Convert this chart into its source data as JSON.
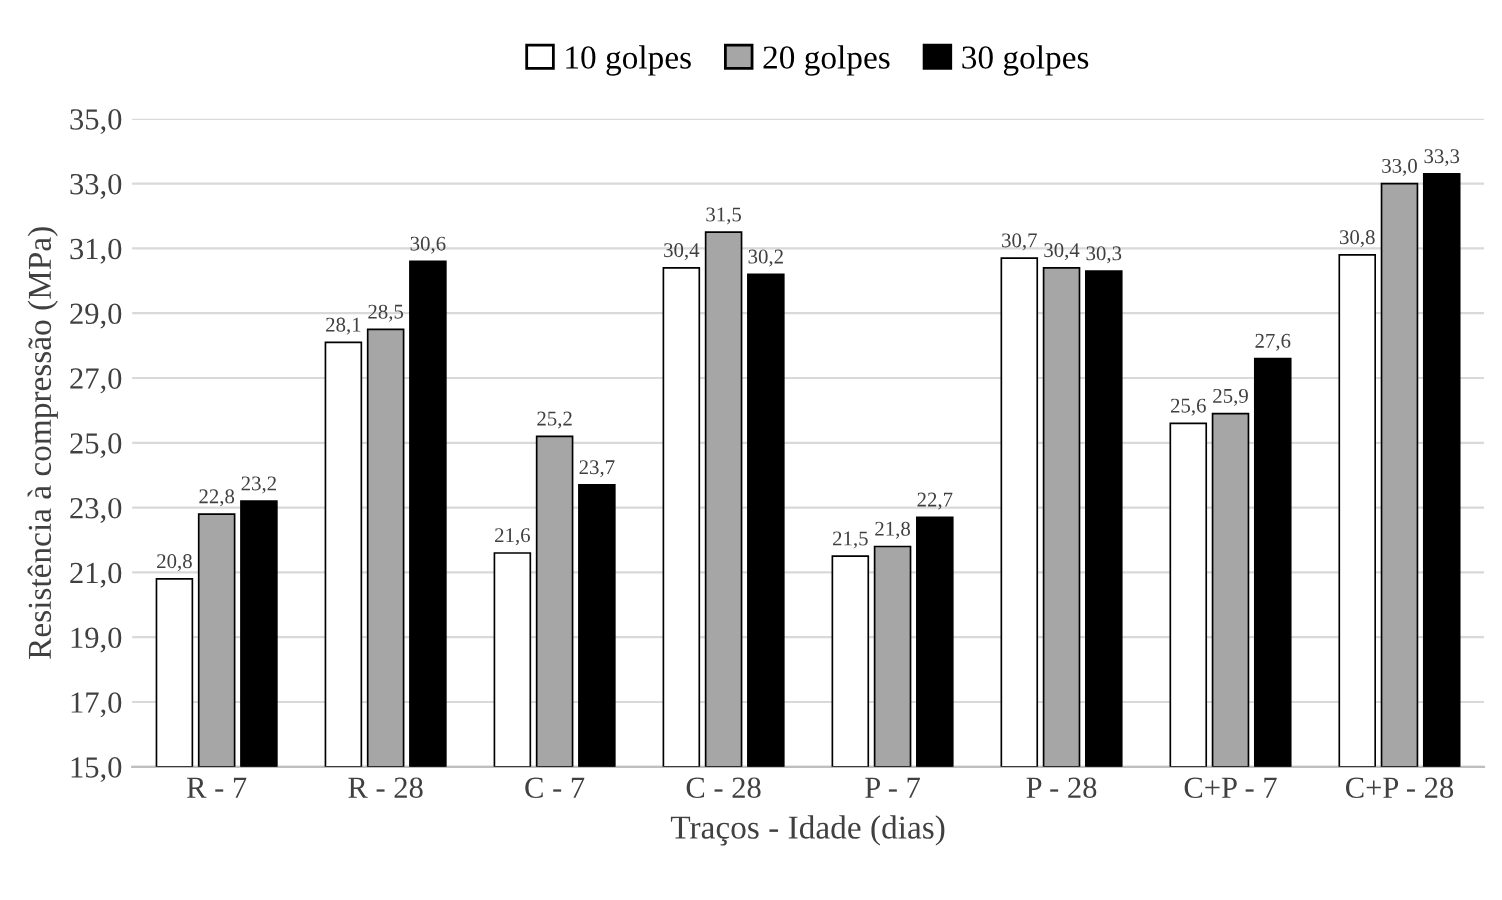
{
  "chart_data": {
    "type": "bar",
    "xlabel": "Traços - Idade (dias)",
    "ylabel": "Resistência à compressão (MPa)",
    "categories": [
      "R - 7",
      "R - 28",
      "C - 7",
      "C - 28",
      "P - 7",
      "P - 28",
      "C+P - 7",
      "C+P - 28"
    ],
    "series": [
      {
        "name": "10 golpes",
        "color": "#ffffff",
        "values": [
          20.8,
          28.1,
          21.6,
          30.4,
          21.5,
          30.7,
          25.6,
          30.8
        ],
        "value_labels": [
          "20,8",
          "28,1",
          "21,6",
          "30,4",
          "21,5",
          "30,7",
          "25,6",
          "30,8"
        ]
      },
      {
        "name": "20 golpes",
        "color": "#a6a6a6",
        "values": [
          22.8,
          28.5,
          25.2,
          31.5,
          21.8,
          30.4,
          25.9,
          33.0
        ],
        "value_labels": [
          "22,8",
          "28,5",
          "25,2",
          "31,5",
          "21,8",
          "30,4",
          "25,9",
          "33,0"
        ]
      },
      {
        "name": "30 golpes",
        "color": "#000000",
        "values": [
          23.2,
          30.6,
          23.7,
          30.2,
          22.7,
          30.3,
          27.6,
          33.3
        ],
        "value_labels": [
          "23,2",
          "30,6",
          "23,7",
          "30,2",
          "22,7",
          "30,3",
          "27,6",
          "33,3"
        ]
      }
    ],
    "ylim": [
      15,
      35
    ],
    "yticks": [
      {
        "value": 15,
        "label": "15,0"
      },
      {
        "value": 17,
        "label": "17,0"
      },
      {
        "value": 19,
        "label": "19,0"
      },
      {
        "value": 21,
        "label": "21,0"
      },
      {
        "value": 23,
        "label": "23,0"
      },
      {
        "value": 25,
        "label": "25,0"
      },
      {
        "value": 27,
        "label": "27,0"
      },
      {
        "value": 29,
        "label": "29,0"
      },
      {
        "value": 31,
        "label": "31,0"
      },
      {
        "value": 33,
        "label": "33,0"
      },
      {
        "value": 35,
        "label": "35,0"
      }
    ],
    "grid": "y",
    "legend": "top"
  }
}
